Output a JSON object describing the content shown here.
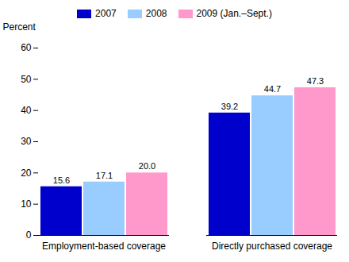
{
  "chart_data": {
    "type": "bar",
    "y_label": "Percent",
    "categories": [
      "Employment-based coverage",
      "Directly purchased coverage"
    ],
    "series": [
      {
        "name": "2007",
        "color": "#0000CC",
        "values": [
          15.6,
          39.2
        ]
      },
      {
        "name": "2008",
        "color": "#99CCFF",
        "values": [
          17.1,
          44.7
        ]
      },
      {
        "name": "2009 (Jan.–Sept.)",
        "color": "#FF99CC",
        "values": [
          20.0,
          47.3
        ],
        "value_labels": [
          "20.0",
          "47.3"
        ]
      }
    ],
    "ylim": [
      0,
      60
    ],
    "yticks": [
      0,
      10,
      20,
      30,
      40,
      50,
      60
    ],
    "data_labels": true,
    "grid": false,
    "legend": "top"
  }
}
